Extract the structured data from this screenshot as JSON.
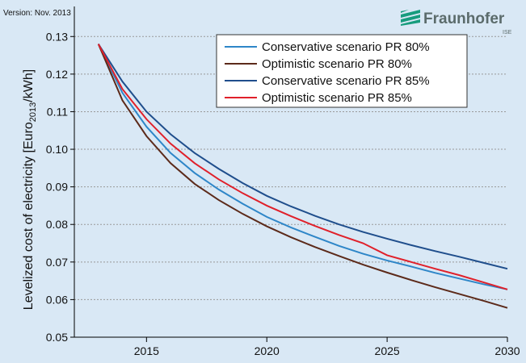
{
  "chart_data": {
    "type": "line",
    "version": "Version: Nov. 2013",
    "logo": {
      "name": "Fraunhofer",
      "sub": "ISE"
    },
    "ylabel": {
      "text": "Levelized cost of electricity [Euro",
      "sub": "2013",
      "end": "/kWh]"
    },
    "x": [
      2013,
      2014,
      2015,
      2016,
      2017,
      2018,
      2019,
      2020,
      2021,
      2022,
      2023,
      2024,
      2025,
      2026,
      2027,
      2028,
      2029,
      2030
    ],
    "series": [
      {
        "name": "Conservative scenario PR 80%",
        "color": "#2e86c8",
        "values": [
          0.128,
          0.115,
          0.106,
          0.099,
          0.0937,
          0.0893,
          0.0855,
          0.082,
          0.0792,
          0.0767,
          0.0743,
          0.0722,
          0.0704,
          0.0688,
          0.0671,
          0.0656,
          0.0641,
          0.0627
        ]
      },
      {
        "name": "Optimistic scenario PR 80%",
        "color": "#5c2a1a",
        "values": [
          0.128,
          0.113,
          0.1035,
          0.0963,
          0.0908,
          0.0865,
          0.0828,
          0.0795,
          0.0766,
          0.074,
          0.0716,
          0.0693,
          0.0672,
          0.0652,
          0.0633,
          0.0615,
          0.0597,
          0.0578
        ]
      },
      {
        "name": "Conservative scenario PR 85%",
        "color": "#1f4e8c",
        "values": [
          0.128,
          0.118,
          0.11,
          0.104,
          0.099,
          0.0948,
          0.091,
          0.0876,
          0.0848,
          0.0823,
          0.08,
          0.078,
          0.0762,
          0.0745,
          0.0729,
          0.0714,
          0.0698,
          0.0682
        ]
      },
      {
        "name": "Optimistic scenario PR 85%",
        "color": "#e0202a",
        "values": [
          0.128,
          0.116,
          0.108,
          0.1015,
          0.0963,
          0.092,
          0.0883,
          0.085,
          0.0822,
          0.0796,
          0.0772,
          0.075,
          0.0718,
          0.07,
          0.0682,
          0.0665,
          0.0646,
          0.0627
        ]
      }
    ],
    "xlim": [
      2012,
      2030
    ],
    "ylim": [
      0.05,
      0.138
    ],
    "xticks": [
      2015,
      2020,
      2025,
      2030
    ],
    "yticks": [
      0.05,
      0.06,
      0.07,
      0.08,
      0.09,
      {
        "value": 0.1,
        "label": "0.10"
      },
      0.11,
      0.12,
      0.13
    ],
    "grid": true
  }
}
